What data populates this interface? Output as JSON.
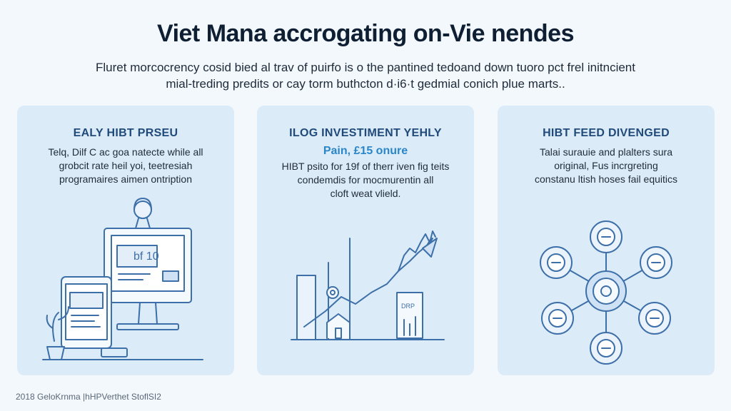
{
  "header": {
    "title": "Viet Mana accrogating on-Vie nendes",
    "subtitle_line1": "Fluret morcocrency cosid bied al trav of puirfo is o the pantined tedoand down tuoro pct frel initncient",
    "subtitle_line2": "mial-treding predits or cay torm buthcton d·i6·t gedmial conich plue marts.."
  },
  "cards": [
    {
      "heading": "EALY HIBT PRSEU",
      "body_line1": "Telq, Dilf C ac goa natecte while all",
      "body_line2": "grobcit rate heil yoi, teetresiah",
      "body_line3": "programaires aimen ontription",
      "screen_text": "bf 10"
    },
    {
      "heading": "ILOG INVESTIMENT YEHLY",
      "highlight": "Pain, £15 onure",
      "body_line1": "HIBT psito for 19f of therr iven fig teits",
      "body_line2": "condemdis for mocmurentin all",
      "body_line3": "cloft weat vlield.",
      "panel_text": "DRP"
    },
    {
      "heading": "HIBT FEED DIVENGED",
      "body_line1": "Talai surauie and plalters sura",
      "body_line2": "original, Fus incrgreting",
      "body_line3": "constanu ltish hoses fail equitics"
    }
  ],
  "footer": {
    "text": "2018 GeloKrnma |hHPVerthet StoflSI2"
  },
  "colors": {
    "card_bg": "#dcebf8",
    "heading": "#1f4a7a",
    "accent": "#2b86c8",
    "illustration_line": "#3d6fa8"
  }
}
